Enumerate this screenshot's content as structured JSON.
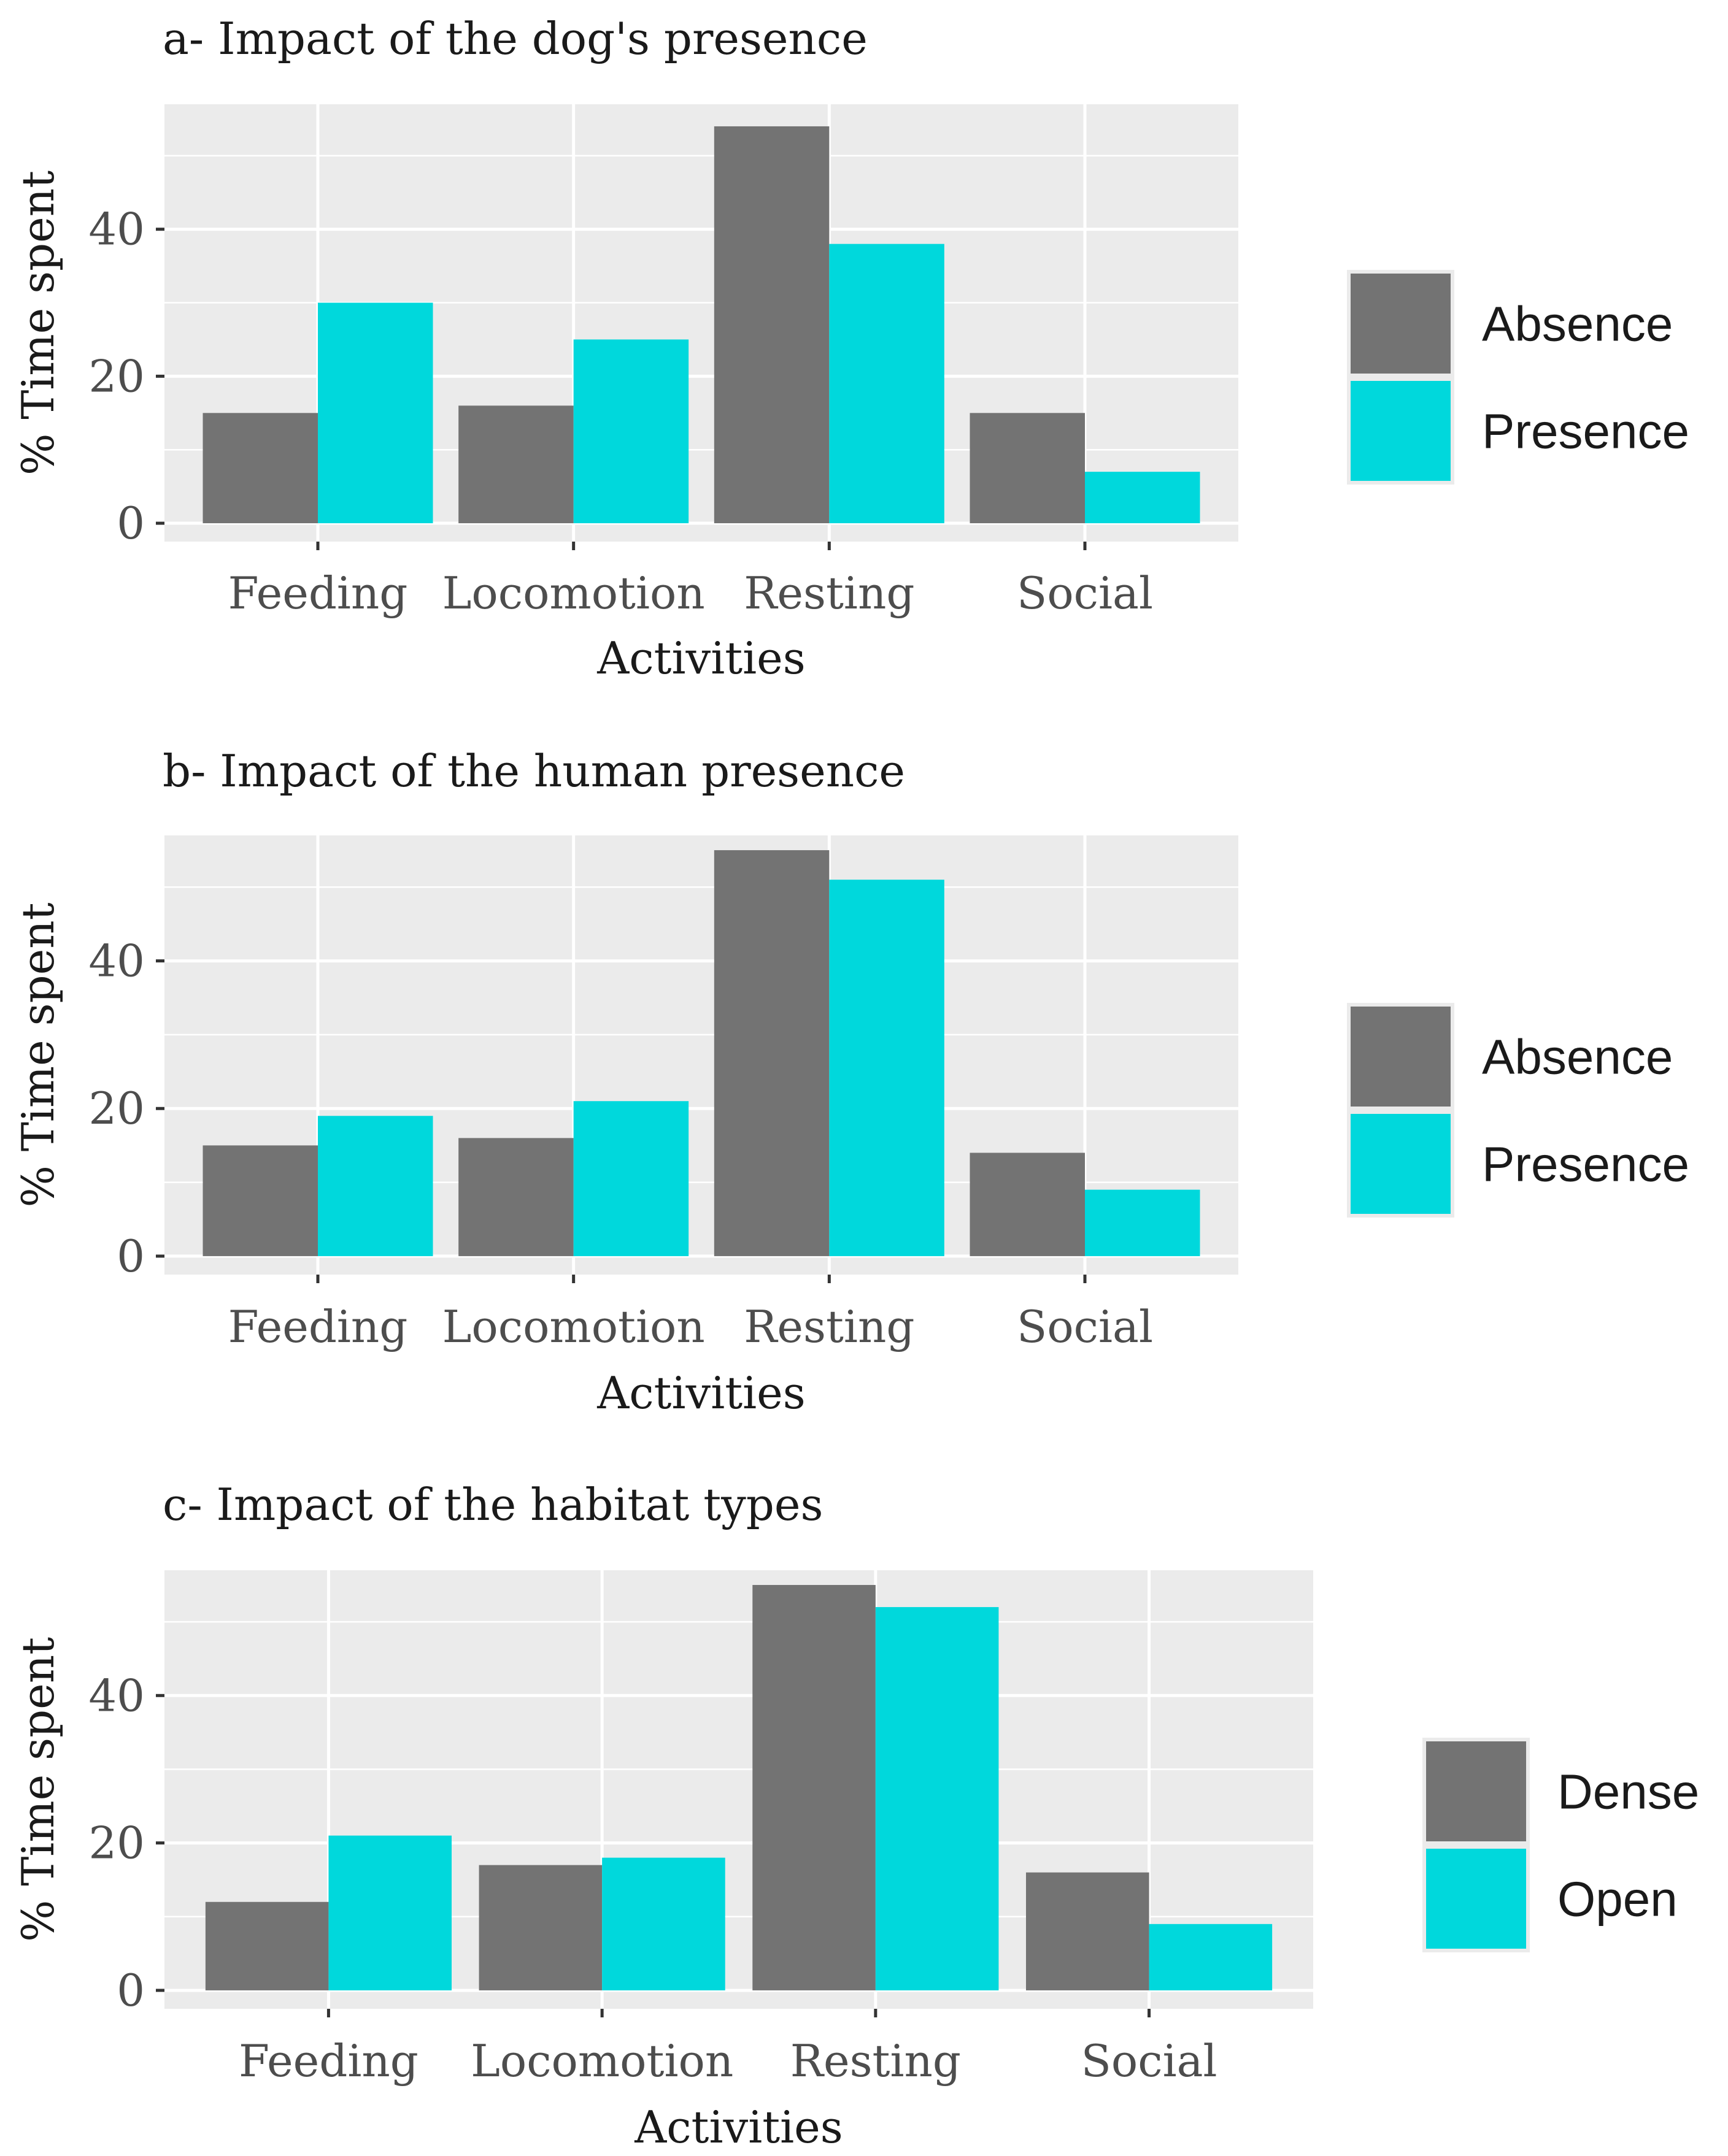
{
  "colors": {
    "panel": "#ebebeb",
    "grid": "#ffffff",
    "series_a": "#737373",
    "series_b": "#00d8dc",
    "tick": "#333333"
  },
  "chart_data": [
    {
      "type": "bar",
      "title": "a- Impact of the dog's presence",
      "xlabel": "Activities",
      "ylabel": "% Time spent",
      "categories": [
        "Feeding",
        "Locomotion",
        "Resting",
        "Social"
      ],
      "series": [
        {
          "name": "Absence",
          "values": [
            15,
            16,
            54,
            15
          ]
        },
        {
          "name": "Presence",
          "values": [
            30,
            25,
            38,
            7
          ]
        }
      ],
      "yticks": [
        0,
        20,
        40
      ],
      "ytick_labels": [
        "0",
        "20",
        "40"
      ],
      "ylim": [
        -2.5,
        57
      ],
      "legend": "right"
    },
    {
      "type": "bar",
      "title": "b- Impact of the human presence",
      "xlabel": "Activities",
      "ylabel": "% Time spent",
      "categories": [
        "Feeding",
        "Locomotion",
        "Resting",
        "Social"
      ],
      "series": [
        {
          "name": "Absence",
          "values": [
            15,
            16,
            55,
            14
          ]
        },
        {
          "name": "Presence",
          "values": [
            19,
            21,
            51,
            9
          ]
        }
      ],
      "yticks": [
        0,
        20,
        40
      ],
      "ytick_labels": [
        "0",
        "20",
        "40"
      ],
      "ylim": [
        -2.5,
        57
      ],
      "legend": "right"
    },
    {
      "type": "bar",
      "title": "c- Impact of the habitat types",
      "xlabel": "Activities",
      "ylabel": "% Time spent",
      "categories": [
        "Feeding",
        "Locomotion",
        "Resting",
        "Social"
      ],
      "series": [
        {
          "name": "Dense",
          "values": [
            12,
            17,
            55,
            16
          ]
        },
        {
          "name": "Open",
          "values": [
            21,
            18,
            52,
            9
          ]
        }
      ],
      "yticks": [
        0,
        20,
        40
      ],
      "ytick_labels": [
        "0",
        "20",
        "40"
      ],
      "ylim": [
        -2.5,
        57
      ],
      "legend": "right"
    }
  ]
}
